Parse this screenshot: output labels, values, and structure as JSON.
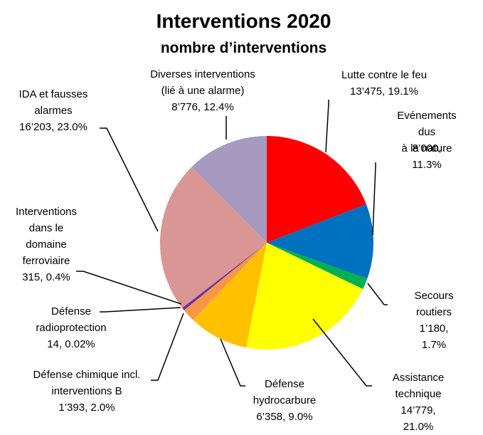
{
  "chart_data": {
    "type": "pie",
    "title": "Interventions 2020",
    "subtitle": "nombre d’interventions",
    "categories": [
      "Lutte contre le feu",
      "Evénements dus\nà la nature",
      "Secours\nroutiers",
      "Assistance\ntechnique",
      "Défense\nhydrocarbure",
      "Défense chimique incl.\ninterventions B",
      "Défense\nradioprotection",
      "Interventions\ndans le\ndomaine\nferroviaire",
      "IDA et fausses\nalarmes",
      "Diverses interventions\n(lié à une alarme)"
    ],
    "values": [
      13475,
      8000,
      1180,
      14779,
      6358,
      1393,
      14,
      315,
      16203,
      8776
    ],
    "value_labels": [
      "13’475, 19.1%",
      "8’000, 11.3%",
      "1’180, 1.7%",
      "14’779, 21.0%",
      "6’358, 9.0%",
      "1’393, 2.0%",
      "14, 0.02%",
      "315, 0.4%",
      "16’203, 23.0%",
      "8’776, 12.4%"
    ],
    "colors": [
      "#ff0000",
      "#0070c0",
      "#00b050",
      "#ffff00",
      "#ffc000",
      "#f79646",
      "#a6a6a6",
      "#7030a0",
      "#d99694",
      "#a79ac0"
    ]
  }
}
